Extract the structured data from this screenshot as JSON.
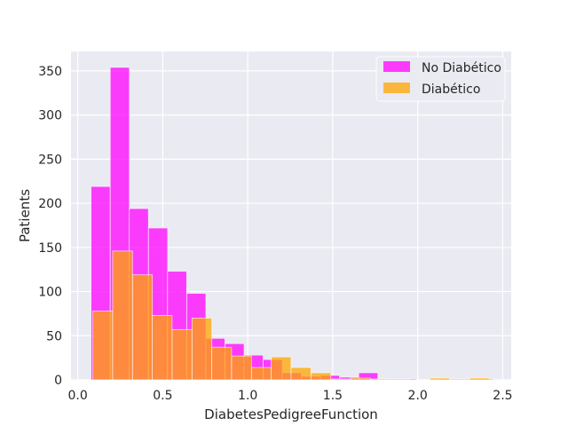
{
  "chart_data": {
    "type": "histogram",
    "xlabel": "DiabetesPedigreeFunction",
    "ylabel": "Patients",
    "xlim": [
      -0.04,
      2.55
    ],
    "ylim": [
      0,
      372
    ],
    "xticks": [
      0.0,
      0.5,
      1.0,
      1.5,
      2.0,
      2.5
    ],
    "xtick_labels": [
      "0.0",
      "0.5",
      "1.0",
      "1.5",
      "2.0",
      "2.5"
    ],
    "yticks": [
      0,
      50,
      100,
      150,
      200,
      250,
      300,
      350
    ],
    "ytick_labels": [
      "0",
      "50",
      "100",
      "150",
      "200",
      "250",
      "300",
      "350"
    ],
    "grid": true,
    "legend_position": "top-right",
    "background": "#eaeaf2",
    "series": [
      {
        "name": "No Diabético",
        "color": "#ff00ff",
        "opacity": 0.75,
        "bin_width": 0.1125,
        "bins": [
          {
            "x0": 0.078,
            "count": 219
          },
          {
            "x0": 0.191,
            "count": 354
          },
          {
            "x0": 0.303,
            "count": 194
          },
          {
            "x0": 0.416,
            "count": 172
          },
          {
            "x0": 0.528,
            "count": 123
          },
          {
            "x0": 0.641,
            "count": 98
          },
          {
            "x0": 0.753,
            "count": 47
          },
          {
            "x0": 0.866,
            "count": 41
          },
          {
            "x0": 0.978,
            "count": 28
          },
          {
            "x0": 1.091,
            "count": 23
          },
          {
            "x0": 1.203,
            "count": 8
          },
          {
            "x0": 1.316,
            "count": 4
          },
          {
            "x0": 1.428,
            "count": 5
          },
          {
            "x0": 1.541,
            "count": 3
          },
          {
            "x0": 1.653,
            "count": 8
          },
          {
            "x0": 1.766,
            "count": 1
          },
          {
            "x0": 1.878,
            "count": 1
          },
          {
            "x0": 1.991,
            "count": 0
          },
          {
            "x0": 2.103,
            "count": 1
          },
          {
            "x0": 2.216,
            "count": 1
          },
          {
            "x0": 2.328,
            "count": 1
          }
        ]
      },
      {
        "name": "Diabético",
        "color": "#ffa500",
        "opacity": 0.75,
        "bin_width": 0.1167,
        "bins": [
          {
            "x0": 0.088,
            "count": 78
          },
          {
            "x0": 0.205,
            "count": 146
          },
          {
            "x0": 0.322,
            "count": 119
          },
          {
            "x0": 0.438,
            "count": 73
          },
          {
            "x0": 0.555,
            "count": 57
          },
          {
            "x0": 0.672,
            "count": 70
          },
          {
            "x0": 0.788,
            "count": 37
          },
          {
            "x0": 0.905,
            "count": 27
          },
          {
            "x0": 1.022,
            "count": 14
          },
          {
            "x0": 1.138,
            "count": 26
          },
          {
            "x0": 1.255,
            "count": 14
          },
          {
            "x0": 1.372,
            "count": 8
          },
          {
            "x0": 1.488,
            "count": 1
          },
          {
            "x0": 1.605,
            "count": 2
          },
          {
            "x0": 1.722,
            "count": 1
          },
          {
            "x0": 1.838,
            "count": 1
          },
          {
            "x0": 1.955,
            "count": 0
          },
          {
            "x0": 2.072,
            "count": 2
          },
          {
            "x0": 2.188,
            "count": 1
          },
          {
            "x0": 2.305,
            "count": 2
          }
        ]
      }
    ]
  }
}
